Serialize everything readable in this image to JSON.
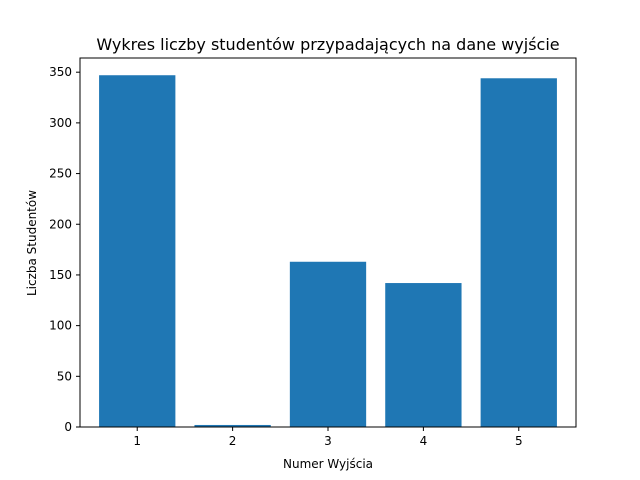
{
  "chart_data": {
    "type": "bar",
    "title": "Wykres liczby studentów przypadających na dane wyjście",
    "xlabel": "Numer Wyjścia",
    "ylabel": "Liczba Studentów",
    "categories": [
      "1",
      "2",
      "3",
      "4",
      "5"
    ],
    "values": [
      347,
      2,
      163,
      142,
      344
    ],
    "ylim": [
      0,
      364
    ],
    "yticks": [
      0,
      50,
      100,
      150,
      200,
      250,
      300,
      350
    ],
    "grid": false,
    "bar_color": "#1f77b4"
  }
}
